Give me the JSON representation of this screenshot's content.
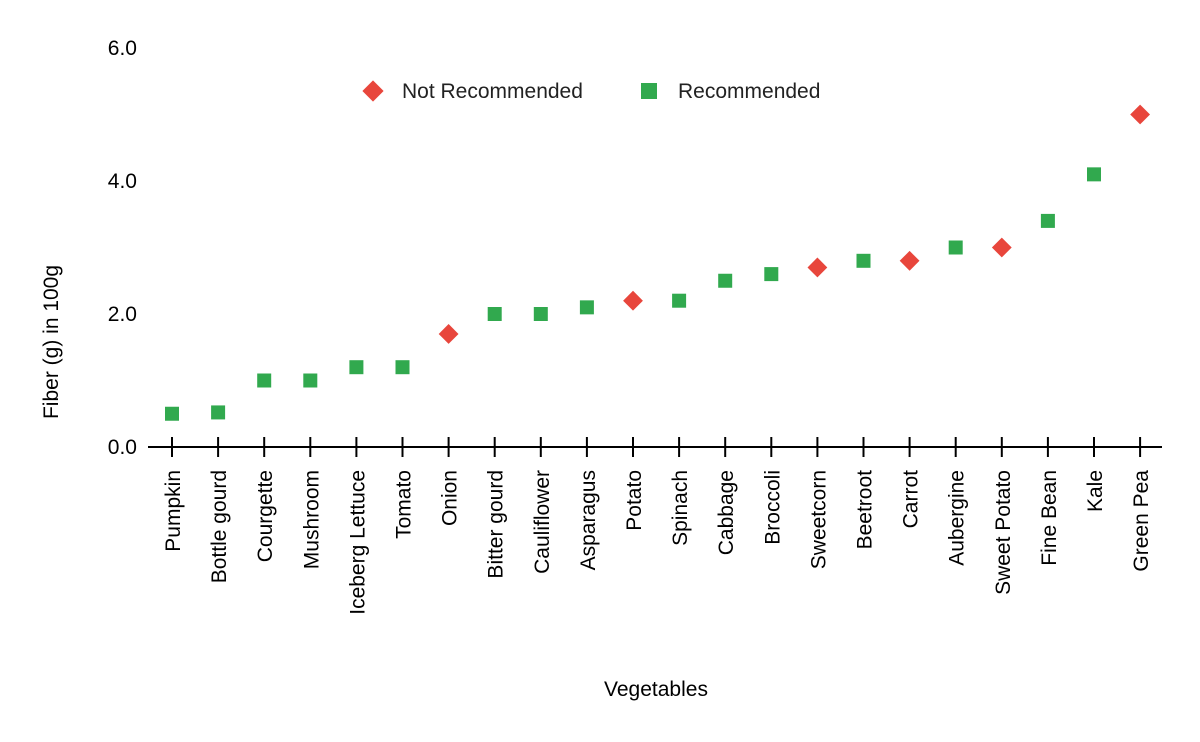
{
  "chart_data": {
    "type": "scatter",
    "title": "",
    "xlabel": "Vegetables",
    "ylabel": "Fiber (g) in 100g",
    "ylim": [
      0,
      6
    ],
    "yticks": [
      "0.0",
      "2.0",
      "4.0",
      "6.0"
    ],
    "grid": false,
    "legend_position": "top-center",
    "colors": {
      "not_recommended": "#e8463c",
      "recommended": "#31a94e",
      "axis": "#000000"
    },
    "legend": [
      {
        "key": "not_recommended",
        "label": "Not Recommended",
        "marker": "diamond"
      },
      {
        "key": "recommended",
        "label": "Recommended",
        "marker": "square"
      }
    ],
    "categories": [
      "Pumpkin",
      "Bottle gourd",
      "Courgette",
      "Mushroom",
      "Iceberg Lettuce",
      "Tomato",
      "Onion",
      "Bitter gourd",
      "Cauliflower",
      "Asparagus",
      "Potato",
      "Spinach",
      "Cabbage",
      "Broccoli",
      "Sweetcorn",
      "Beetroot",
      "Carrot",
      "Aubergine",
      "Sweet Potato",
      "Fine Bean",
      "Kale",
      "Green Pea"
    ],
    "values": [
      0.5,
      0.52,
      1.0,
      1.0,
      1.2,
      1.2,
      1.7,
      2.0,
      2.0,
      2.1,
      2.2,
      2.2,
      2.5,
      2.6,
      2.7,
      2.8,
      2.8,
      3.0,
      3.0,
      3.4,
      4.1,
      5.0
    ],
    "groups": [
      "recommended",
      "recommended",
      "recommended",
      "recommended",
      "recommended",
      "recommended",
      "not_recommended",
      "recommended",
      "recommended",
      "recommended",
      "not_recommended",
      "recommended",
      "recommended",
      "recommended",
      "not_recommended",
      "recommended",
      "not_recommended",
      "recommended",
      "not_recommended",
      "recommended",
      "recommended",
      "not_recommended"
    ]
  }
}
